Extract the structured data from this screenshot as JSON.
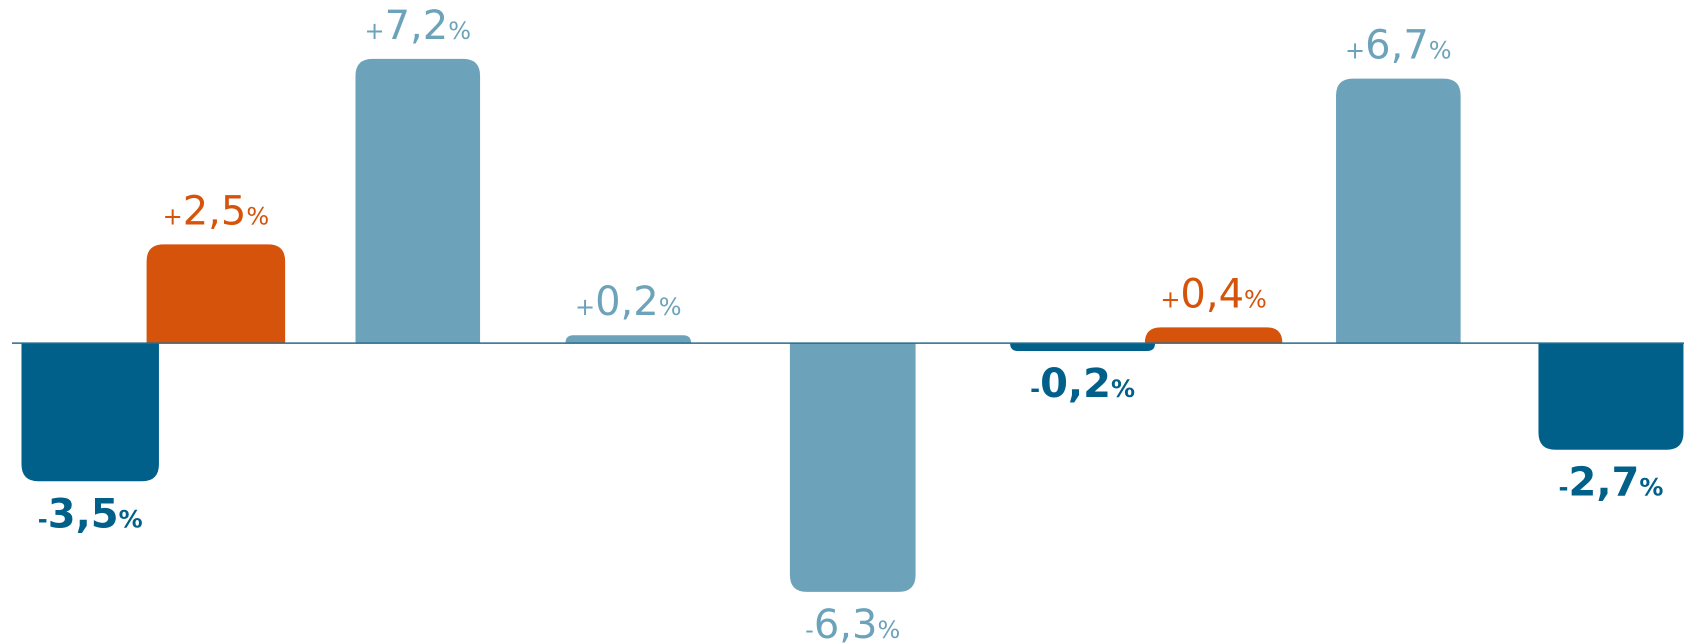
{
  "chart_data": {
    "type": "bar",
    "categories": [
      null,
      null,
      null,
      null,
      null,
      null,
      null,
      null,
      null
    ],
    "values": [
      -3.5,
      2.5,
      7.2,
      0.2,
      -6.3,
      -0.2,
      0.4,
      6.7,
      -2.7
    ],
    "value_labels": [
      "-3,5%",
      "+2,5%",
      "+7,2%",
      "+0,2%",
      "-6,3%",
      "-0,2%",
      "+0,4%",
      "+6,7%",
      "-2,7%"
    ],
    "colors": [
      "#00608a",
      "#d5530a",
      "#6ca3bb",
      "#6ca3bb",
      "#6ca3bb",
      "#00608a",
      "#d5530a",
      "#6ca3bb",
      "#00608a"
    ],
    "ylim": [
      -7,
      7.5
    ]
  }
}
